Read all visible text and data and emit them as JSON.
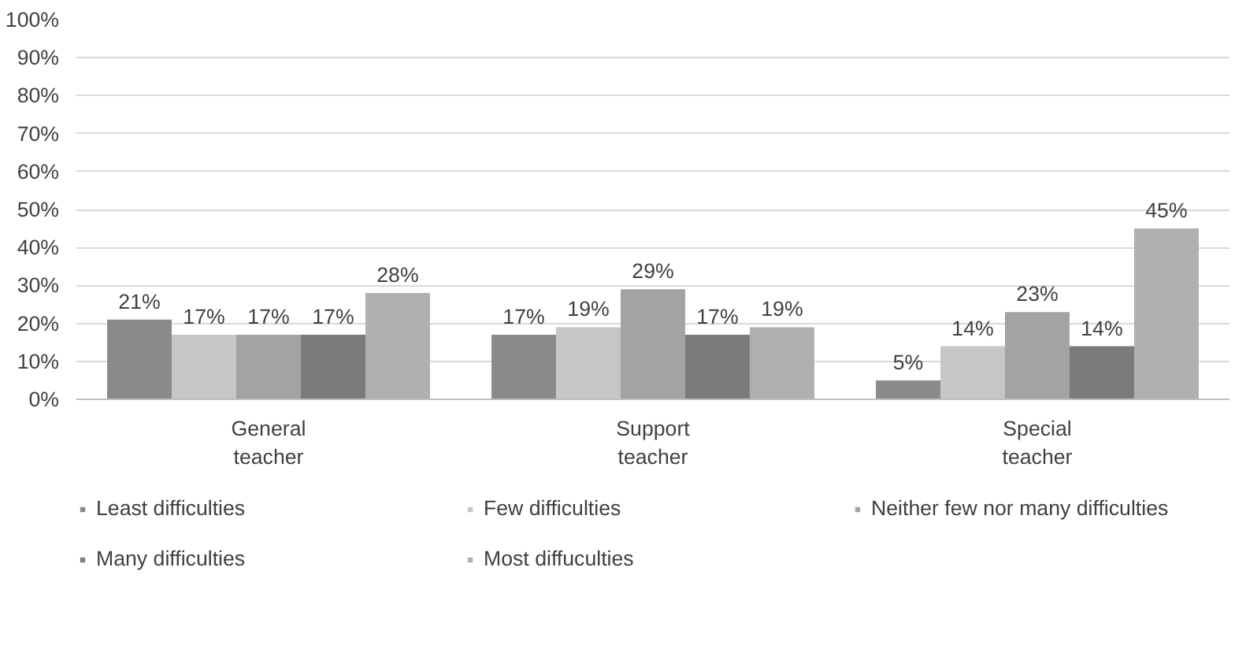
{
  "chart_data": {
    "type": "bar",
    "categories": [
      "General teacher",
      "Support teacher",
      "Special teacher"
    ],
    "series": [
      {
        "name": "Least difficulties",
        "color": "#8a8a8a",
        "values": [
          21,
          17,
          5
        ],
        "value_labels": [
          "21%",
          "17%",
          "5%"
        ]
      },
      {
        "name": "Few difficulties",
        "color": "#c6c6c6",
        "values": [
          17,
          19,
          14
        ],
        "value_labels": [
          "17%",
          "19%",
          "14%"
        ]
      },
      {
        "name": "Neither few nor many difficulties",
        "color": "#a3a3a3",
        "values": [
          17,
          29,
          23
        ],
        "value_labels": [
          "17%",
          "29%",
          "23%"
        ]
      },
      {
        "name": "Many difficulties",
        "color": "#7b7b7b",
        "values": [
          17,
          17,
          14
        ],
        "value_labels": [
          "17%",
          "17%",
          "14%"
        ]
      },
      {
        "name": "Most diffuculties",
        "color": "#b0b0b0",
        "values": [
          28,
          19,
          45
        ],
        "value_labels": [
          "28%",
          "19%",
          "45%"
        ]
      }
    ],
    "ylim": [
      0,
      100
    ],
    "yticks": [
      {
        "value": 0,
        "label": "0%"
      },
      {
        "value": 10,
        "label": "10%"
      },
      {
        "value": 20,
        "label": "20%"
      },
      {
        "value": 30,
        "label": "30%"
      },
      {
        "value": 40,
        "label": "40%"
      },
      {
        "value": 50,
        "label": "50%"
      },
      {
        "value": 60,
        "label": "60%"
      },
      {
        "value": 70,
        "label": "70%"
      },
      {
        "value": 80,
        "label": "80%"
      },
      {
        "value": 90,
        "label": "90%"
      },
      {
        "value": 100,
        "label": "100%"
      }
    ],
    "grid": "y",
    "legend": "bottom"
  }
}
